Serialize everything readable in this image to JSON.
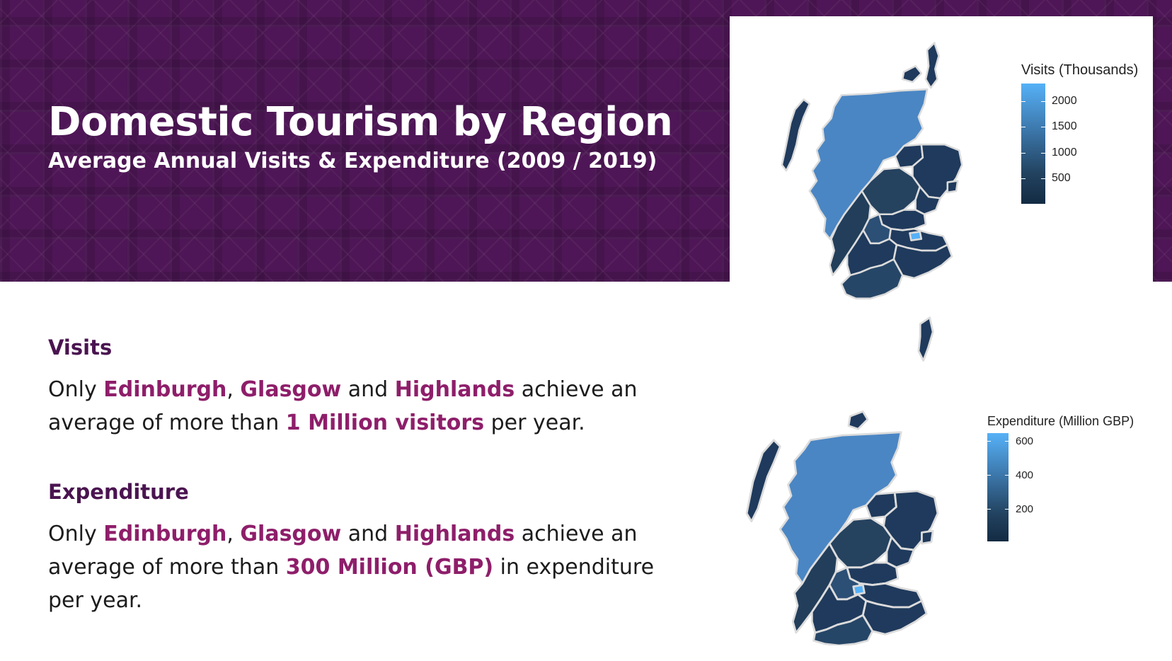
{
  "header": {
    "title": "Domestic Tourism by Region",
    "subtitle": "Average Annual Visits & Expenditure (2009 / 2019)"
  },
  "visits_section": {
    "heading": "Visits",
    "text": [
      "Only ",
      "Edinburgh",
      ", ",
      "Glasgow",
      " and ",
      "Highlands",
      " achieve an average of more than ",
      "1 Million visitors",
      " per year."
    ]
  },
  "expenditure_section": {
    "heading": "Expenditure",
    "text": [
      "Only ",
      "Edinburgh",
      ", ",
      "Glasgow",
      " and ",
      "Highlands",
      " achieve an average of more than ",
      "300 Million (GBP)",
      " in expenditure per year."
    ]
  },
  "maps": {
    "visits": {
      "legend_title": "Visits (Thousands)",
      "ticks": [
        "2000",
        "1500",
        "1000",
        "500"
      ],
      "highlighted_regions": [
        "Highlands",
        "Glasgow",
        "Edinburgh"
      ]
    },
    "expenditure": {
      "legend_title": "Expenditure (Million GBP)",
      "ticks": [
        "600",
        "400",
        "200"
      ],
      "highlighted_regions": [
        "Highlands",
        "Glasgow",
        "Edinburgh"
      ]
    }
  },
  "colors": {
    "banner": "#4e1656",
    "highlight_text": "#8e1e6a",
    "heading_text": "#4a1450",
    "scale_low": "#132b43",
    "scale_high": "#56b1f7",
    "highlands_fill": "#4a86c4",
    "edinburgh_fill": "#56b1f7",
    "other_region_fill": "#1f3a5c"
  }
}
